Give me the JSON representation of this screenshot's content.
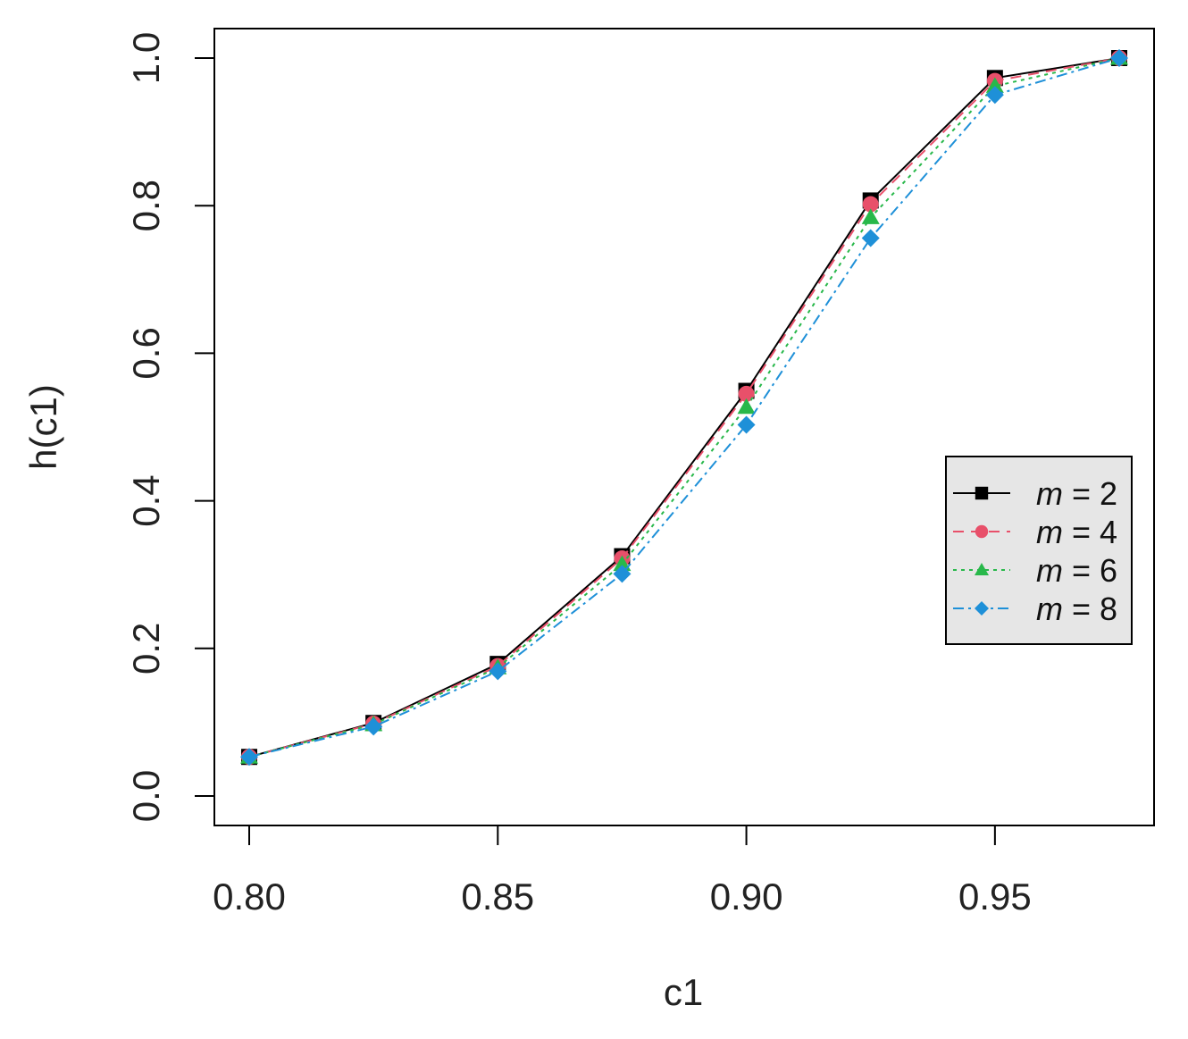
{
  "chart_data": {
    "type": "line",
    "xlabel": "c1",
    "ylabel": "h(c1)",
    "xlim": [
      0.8,
      0.975
    ],
    "ylim": [
      0.0,
      1.0
    ],
    "xticks": [
      "0.80",
      "0.85",
      "0.90",
      "0.95"
    ],
    "yticks": [
      "0.0",
      "0.2",
      "0.4",
      "0.6",
      "0.8",
      "1.0"
    ],
    "x": [
      0.8,
      0.825,
      0.85,
      0.875,
      0.9,
      0.925,
      0.95,
      0.975
    ],
    "legend_position": "right",
    "series": [
      {
        "name": "m = 2",
        "var": "m",
        "value": "2",
        "values": [
          0.053,
          0.099,
          0.179,
          0.325,
          0.549,
          0.807,
          0.973,
          1.0
        ],
        "color": "#000000",
        "marker": "square",
        "dash": ""
      },
      {
        "name": "m = 4",
        "var": "m",
        "value": "4",
        "values": [
          0.053,
          0.098,
          0.176,
          0.322,
          0.545,
          0.802,
          0.969,
          1.0
        ],
        "color": "#e8506a",
        "marker": "circle",
        "dash": "12,8"
      },
      {
        "name": "m = 6",
        "var": "m",
        "value": "6",
        "values": [
          0.053,
          0.097,
          0.174,
          0.314,
          0.527,
          0.784,
          0.962,
          1.0
        ],
        "color": "#28b84a",
        "marker": "triangle",
        "dash": "4,5"
      },
      {
        "name": "m = 8",
        "var": "m",
        "value": "8",
        "values": [
          0.053,
          0.094,
          0.169,
          0.301,
          0.503,
          0.756,
          0.95,
          1.0
        ],
        "color": "#1e90d8",
        "marker": "diamond",
        "dash": "12,5,3,5"
      }
    ]
  }
}
